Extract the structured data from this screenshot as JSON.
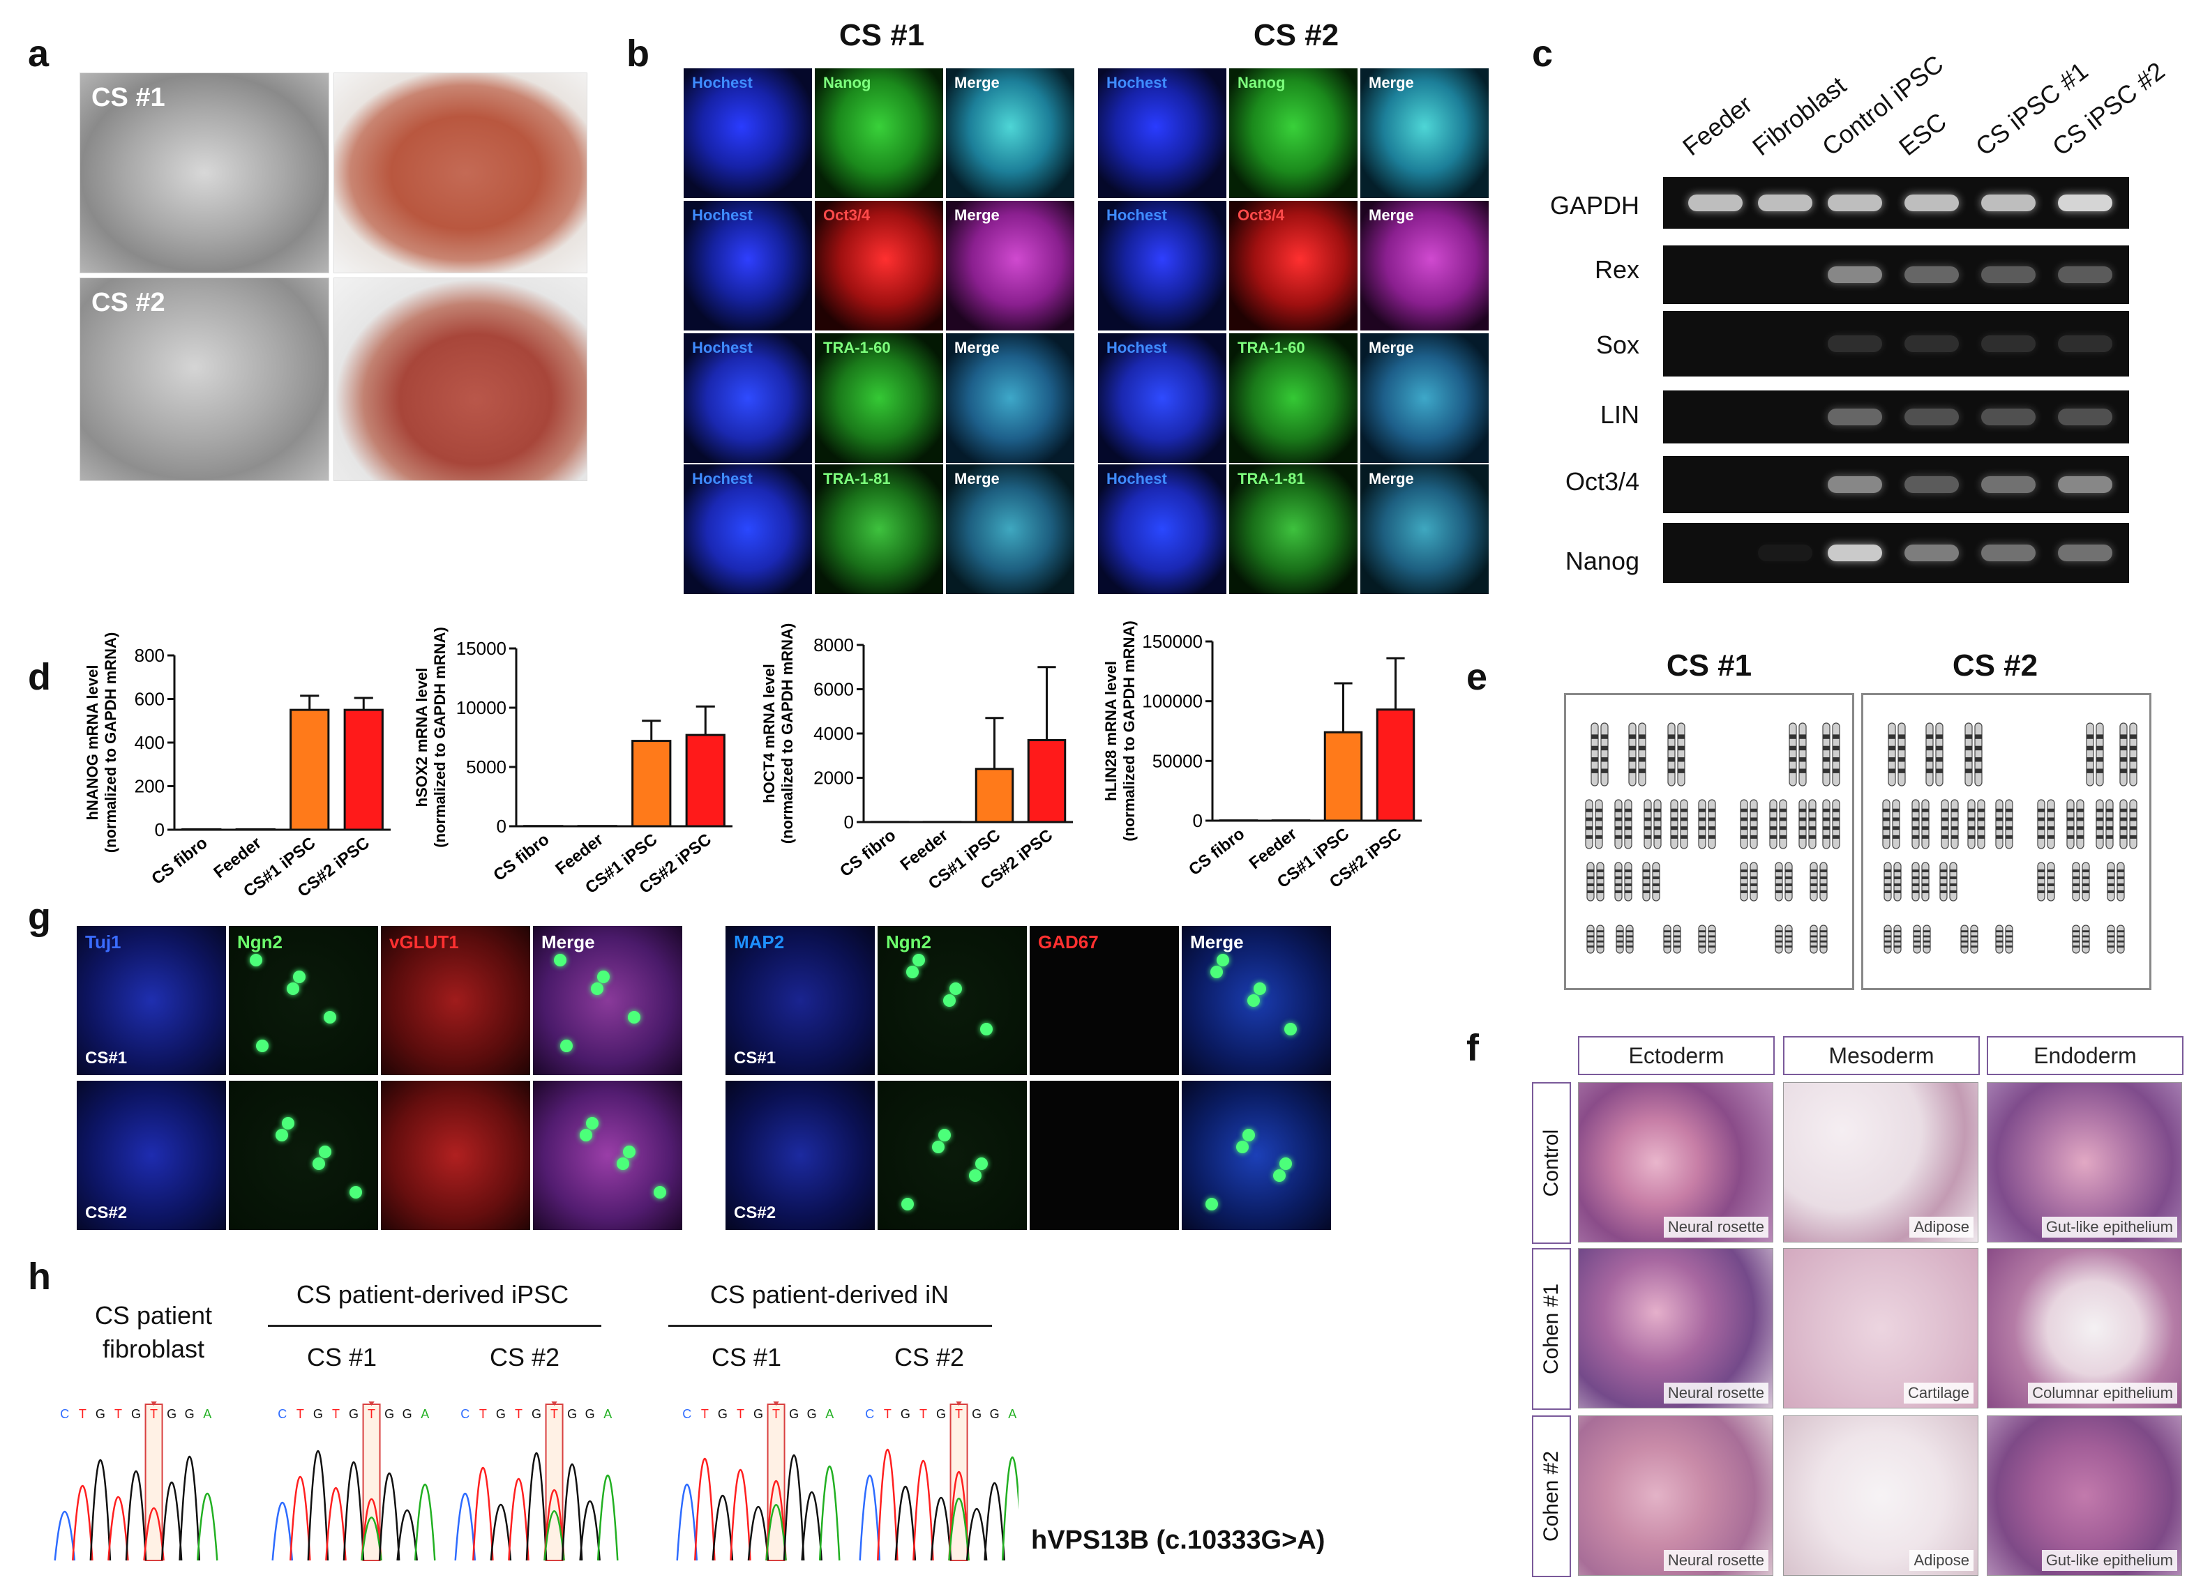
{
  "panel_letters": {
    "a": "a",
    "b": "b",
    "c": "c",
    "d": "d",
    "e": "e",
    "f": "f",
    "g": "g",
    "h": "h"
  },
  "panel_a": {
    "row1": "CS #1",
    "row2": "CS #2"
  },
  "panel_b": {
    "group1_title": "CS #1",
    "group2_title": "CS #2",
    "rows": [
      {
        "c1": "Hochest",
        "c2": "Nanog",
        "c3": "Merge",
        "c2_color": "#7dff7d"
      },
      {
        "c1": "Hochest",
        "c2": "Oct3/4",
        "c3": "Merge",
        "c2_color": "#ff4b4b"
      },
      {
        "c1": "Hochest",
        "c2": "TRA-1-60",
        "c3": "Merge",
        "c2_color": "#7dff7d"
      },
      {
        "c1": "Hochest",
        "c2": "TRA-1-81",
        "c3": "Merge",
        "c2_color": "#7dff7d"
      }
    ]
  },
  "panel_c": {
    "lanes": [
      "Feeder",
      "Fibroblast",
      "Control iPSC",
      "ESC",
      "CS iPSC #1",
      "CS iPSC #2"
    ],
    "genes": [
      "GAPDH",
      "Rex",
      "Sox",
      "LIN",
      "Oct3/4",
      "Nanog"
    ],
    "band_intensity": [
      [
        0.8,
        0.8,
        0.8,
        0.8,
        0.8,
        0.9
      ],
      [
        0,
        0,
        0.55,
        0.4,
        0.35,
        0.35
      ],
      [
        0,
        0,
        0.15,
        0.15,
        0.15,
        0.15
      ],
      [
        0,
        0,
        0.4,
        0.3,
        0.3,
        0.3
      ],
      [
        0,
        0,
        0.55,
        0.35,
        0.45,
        0.55
      ],
      [
        0,
        0.05,
        0.85,
        0.5,
        0.45,
        0.45
      ]
    ]
  },
  "chart_data": [
    {
      "type": "bar",
      "ylabel_line1": "hNANOG mRNA level",
      "ylabel_line2": "(normalized to GAPDH mRNA)",
      "categories": [
        "CS fibro",
        "Feeder",
        "CS#1 iPSC",
        "CS#2 iPSC"
      ],
      "values": [
        2,
        2,
        550,
        550
      ],
      "errors": [
        0,
        0,
        65,
        55
      ],
      "ylim": [
        0,
        800
      ],
      "yticks": [
        0,
        200,
        400,
        600,
        800
      ],
      "ytick_labels": [
        "0",
        "200",
        "400",
        "600",
        "800"
      ],
      "colors": [
        "#ff6a00",
        "#ff6a00",
        "#ff7a1a",
        "#ff1a1a"
      ]
    },
    {
      "type": "bar",
      "ylabel_line1": "hSOX2 mRNA level",
      "ylabel_line2": "(normalized to GAPDH mRNA)",
      "categories": [
        "CS fibro",
        "Feeder",
        "CS#1 iPSC",
        "CS#2 iPSC"
      ],
      "values": [
        20,
        20,
        7200,
        7700
      ],
      "errors": [
        0,
        0,
        1700,
        2400
      ],
      "ylim": [
        0,
        15000
      ],
      "yticks": [
        0,
        5000,
        10000,
        15000
      ],
      "ytick_labels": [
        "0",
        "5000",
        "10000",
        "15000"
      ],
      "colors": [
        "#ff6a00",
        "#ff6a00",
        "#ff7a1a",
        "#ff1a1a"
      ]
    },
    {
      "type": "bar",
      "ylabel_line1": "hOCT4 mRNA level",
      "ylabel_line2": "(normalized to GAPDH mRNA)",
      "categories": [
        "CS fibro",
        "Feeder",
        "CS#1 iPSC",
        "CS#2 iPSC"
      ],
      "values": [
        5,
        5,
        2400,
        3700
      ],
      "errors": [
        0,
        0,
        2300,
        3300
      ],
      "ylim": [
        0,
        8000
      ],
      "yticks": [
        0,
        2000,
        4000,
        6000,
        8000
      ],
      "ytick_labels": [
        "0",
        "2000",
        "4000",
        "6000",
        "8000"
      ],
      "colors": [
        "#ff6a00",
        "#ff6a00",
        "#ff7a1a",
        "#ff1a1a"
      ]
    },
    {
      "type": "bar",
      "ylabel_line1": "hLIN28 mRNA level",
      "ylabel_line2": "(normalized to GAPDH mRNA)",
      "categories": [
        "CS fibro",
        "Feeder",
        "CS#1 iPSC",
        "CS#2 iPSC"
      ],
      "values": [
        200,
        200,
        74000,
        93000
      ],
      "errors": [
        0,
        0,
        41000,
        43000
      ],
      "ylim": [
        0,
        150000
      ],
      "yticks": [
        0,
        50000,
        100000,
        150000
      ],
      "ytick_labels": [
        "0",
        "50000",
        "100000",
        "150000"
      ],
      "colors": [
        "#ff6a00",
        "#ff6a00",
        "#ff7a1a",
        "#ff1a1a"
      ]
    }
  ],
  "panel_e": {
    "title1": "CS #1",
    "title2": "CS #2"
  },
  "panel_f": {
    "columns": [
      "Ectoderm",
      "Mesoderm",
      "Endoderm"
    ],
    "rows": [
      "Control",
      "Cohen #1",
      "Cohen #2"
    ],
    "captions": [
      [
        "Neural rosette",
        "Adipose",
        "Gut-like epithelium"
      ],
      [
        "Neural rosette",
        "Cartilage",
        "Columnar epithelium"
      ],
      [
        "Neural rosette",
        "Adipose",
        "Gut-like epithelium"
      ]
    ]
  },
  "panel_g": {
    "left_labels": [
      "Tuj1",
      "Ngn2",
      "vGLUT1",
      "Merge"
    ],
    "left_colors": [
      "#3a6cff",
      "#6cff6c",
      "#ff3030",
      "#ffffff"
    ],
    "right_labels": [
      "MAP2",
      "Ngn2",
      "GAD67",
      "Merge"
    ],
    "right_colors": [
      "#1e90ff",
      "#6cff6c",
      "#ff3030",
      "#ffffff"
    ],
    "samples": [
      "CS#1",
      "CS#2"
    ]
  },
  "panel_h": {
    "fibroblast_line1": "CS patient",
    "fibroblast_line2": "fibroblast",
    "ipsc_title": "CS patient-derived iPSC",
    "in_title": "CS patient-derived iN",
    "s1": "CS #1",
    "s2": "CS #2",
    "bases": "CTGTGTGGA",
    "gene": "hVPS13B (c.10333G>A)"
  }
}
